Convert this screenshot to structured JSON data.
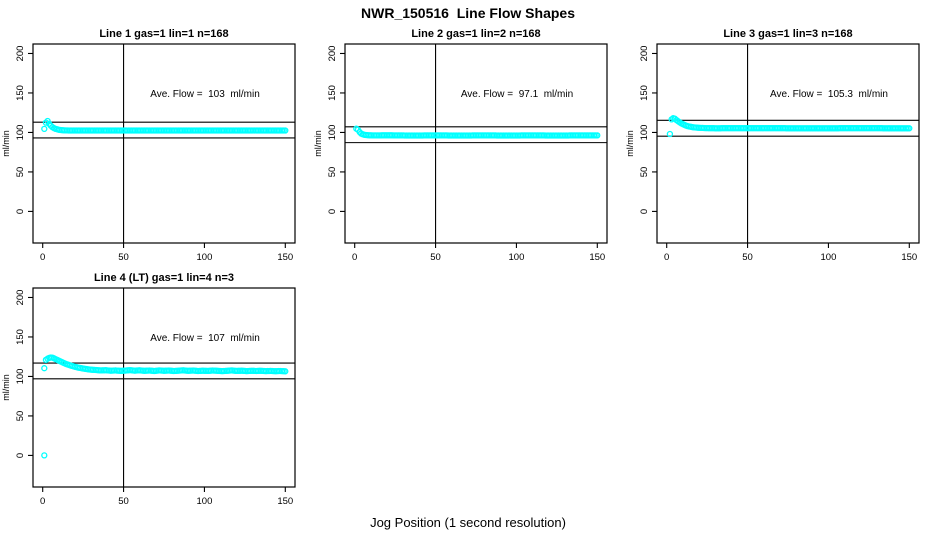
{
  "figure": {
    "title": "NWR_150516  Line Flow Shapes",
    "xlabel": "Jog Position (1 second resolution)",
    "marker_color": "#00FFFF",
    "line_color": "#000000",
    "background_color": "#ffffff"
  },
  "chart_data": [
    {
      "type": "scatter",
      "title": "Line 1 gas=1 lin=1 n=168",
      "annotation": "Ave. Flow =  103  ml/min",
      "ave_flow": 103,
      "ylabel": "ml/min",
      "marker": "open-circle",
      "marker_color": "#00FFFF",
      "xlim": [
        -6,
        156
      ],
      "ylim": [
        -40,
        212
      ],
      "xticks": [
        0,
        50,
        100,
        150
      ],
      "yticks": [
        0,
        50,
        100,
        150,
        200
      ],
      "vline_x": 50,
      "hlines": [
        93,
        113
      ],
      "x_start": 1,
      "x_end": 150,
      "keypoints": [
        [
          1,
          104.5
        ],
        [
          2,
          112.5
        ],
        [
          3,
          114.5
        ],
        [
          4,
          111
        ],
        [
          5,
          108.5
        ],
        [
          6,
          106.8
        ],
        [
          7,
          105.5
        ],
        [
          8,
          104.5
        ],
        [
          10,
          103.4
        ],
        [
          12,
          102.8
        ],
        [
          16,
          102.5
        ],
        [
          30,
          102.5
        ],
        [
          60,
          102.4
        ],
        [
          100,
          102.5
        ],
        [
          150,
          102.4
        ]
      ],
      "outliers": []
    },
    {
      "type": "scatter",
      "title": "Line 2 gas=1 lin=2 n=168",
      "annotation": "Ave. Flow =  97.1  ml/min",
      "ave_flow": 97.1,
      "ylabel": "ml/min",
      "marker": "open-circle",
      "marker_color": "#00FFFF",
      "xlim": [
        -6,
        156
      ],
      "ylim": [
        -40,
        212
      ],
      "xticks": [
        0,
        50,
        100,
        150
      ],
      "yticks": [
        0,
        50,
        100,
        150,
        200
      ],
      "vline_x": 50,
      "hlines": [
        87.1,
        107.1
      ],
      "x_start": 1,
      "x_end": 150,
      "keypoints": [
        [
          1,
          104.8
        ],
        [
          2,
          103.5
        ],
        [
          3,
          100.5
        ],
        [
          4,
          98.6
        ],
        [
          5,
          97.6
        ],
        [
          6,
          97
        ],
        [
          8,
          96.5
        ],
        [
          12,
          96.2
        ],
        [
          20,
          96.4
        ],
        [
          35,
          96.1
        ],
        [
          50,
          96.3
        ],
        [
          65,
          96.1
        ],
        [
          80,
          96.3
        ],
        [
          95,
          96.1
        ],
        [
          110,
          96.3
        ],
        [
          125,
          96.1
        ],
        [
          140,
          96.3
        ],
        [
          150,
          96.2
        ]
      ],
      "outliers": []
    },
    {
      "type": "scatter",
      "title": "Line 3 gas=1 lin=3 n=168",
      "annotation": "Ave. Flow =  105.3  ml/min",
      "ave_flow": 105.3,
      "ylabel": "ml/min",
      "marker": "open-circle",
      "marker_color": "#00FFFF",
      "xlim": [
        -6,
        156
      ],
      "ylim": [
        -40,
        212
      ],
      "xticks": [
        0,
        50,
        100,
        150
      ],
      "yticks": [
        0,
        50,
        100,
        150,
        200
      ],
      "vline_x": 50,
      "hlines": [
        95.3,
        115.3
      ],
      "x_start": 3,
      "x_end": 150,
      "keypoints": [
        [
          3,
          116.5
        ],
        [
          4,
          118
        ],
        [
          5,
          117.5
        ],
        [
          6,
          115.8
        ],
        [
          7,
          114.2
        ],
        [
          8,
          112.8
        ],
        [
          9,
          111.5
        ],
        [
          10,
          110.4
        ],
        [
          11,
          109.5
        ],
        [
          12,
          108.7
        ],
        [
          13,
          108
        ],
        [
          14,
          107.5
        ],
        [
          16,
          106.7
        ],
        [
          18,
          106.2
        ],
        [
          20,
          105.9
        ],
        [
          24,
          105.5
        ],
        [
          30,
          105.3
        ],
        [
          60,
          105.4
        ],
        [
          90,
          105.2
        ],
        [
          120,
          105.4
        ],
        [
          150,
          105.2
        ]
      ],
      "outliers": [
        [
          2,
          98
        ]
      ]
    },
    {
      "type": "scatter",
      "title": "Line 4 (LT) gas=1 lin=4 n=3",
      "annotation": "Ave. Flow =  107  ml/min",
      "ave_flow": 107,
      "ylabel": "ml/min",
      "marker": "open-circle",
      "marker_color": "#00FFFF",
      "xlim": [
        -6,
        156
      ],
      "ylim": [
        -40,
        212
      ],
      "xticks": [
        0,
        50,
        100,
        150
      ],
      "yticks": [
        0,
        50,
        100,
        150,
        200
      ],
      "vline_x": 50,
      "hlines": [
        97,
        117
      ],
      "x_start": 2,
      "x_end": 150,
      "keypoints": [
        [
          2,
          121
        ],
        [
          3,
          122.5
        ],
        [
          4,
          123.5
        ],
        [
          5,
          124
        ],
        [
          6,
          123.8
        ],
        [
          7,
          123
        ],
        [
          8,
          122
        ],
        [
          9,
          121
        ],
        [
          10,
          120
        ],
        [
          11,
          119
        ],
        [
          12,
          118
        ],
        [
          13,
          117.1
        ],
        [
          14,
          116.2
        ],
        [
          15,
          115.4
        ],
        [
          16,
          114.7
        ],
        [
          17,
          114
        ],
        [
          18,
          113.4
        ],
        [
          19,
          112.8
        ],
        [
          20,
          112.2
        ],
        [
          22,
          111.2
        ],
        [
          24,
          110.4
        ],
        [
          26,
          109.7
        ],
        [
          28,
          109.1
        ],
        [
          30,
          108.6
        ],
        [
          33,
          108.1
        ],
        [
          36,
          107.7
        ],
        [
          39,
          107.9
        ],
        [
          42,
          107.3
        ],
        [
          45,
          107.6
        ],
        [
          48,
          107.1
        ],
        [
          51,
          107.4
        ],
        [
          54,
          108
        ],
        [
          57,
          107.3
        ],
        [
          60,
          107.8
        ],
        [
          63,
          107.1
        ],
        [
          66,
          107.5
        ],
        [
          69,
          106.9
        ],
        [
          72,
          107.7
        ],
        [
          75,
          107.2
        ],
        [
          78,
          107.5
        ],
        [
          81,
          106.9
        ],
        [
          84,
          107.3
        ],
        [
          87,
          107.8
        ],
        [
          90,
          107.1
        ],
        [
          93,
          107.5
        ],
        [
          96,
          106.9
        ],
        [
          99,
          107.3
        ],
        [
          102,
          107
        ],
        [
          105,
          107.5
        ],
        [
          108,
          107.1
        ],
        [
          111,
          106.8
        ],
        [
          114,
          107.2
        ],
        [
          117,
          107.6
        ],
        [
          120,
          107
        ],
        [
          123,
          107.3
        ],
        [
          126,
          106.8
        ],
        [
          129,
          107.2
        ],
        [
          132,
          106.9
        ],
        [
          135,
          107.2
        ],
        [
          138,
          106.8
        ],
        [
          141,
          107
        ],
        [
          144,
          106.7
        ],
        [
          147,
          106.9
        ],
        [
          150,
          106.5
        ]
      ],
      "outliers": [
        [
          1,
          0
        ],
        [
          1,
          110.5
        ]
      ]
    }
  ]
}
